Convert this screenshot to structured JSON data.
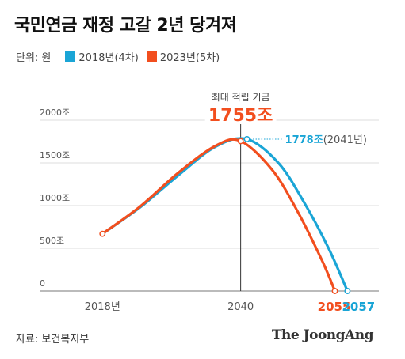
{
  "header": {
    "title": "국민연금 재정 고갈 2년 당겨져"
  },
  "legend": {
    "unit": "단위: 원",
    "items": [
      {
        "label": "2018년(4차)",
        "color": "#1aa5d6"
      },
      {
        "label": "2023년(5차)",
        "color": "#f24e1e"
      }
    ]
  },
  "footer": {
    "source": "자료: 보건복지부",
    "brand": "The JoongAng"
  },
  "chart_data": {
    "type": "line",
    "y_ticks": [
      {
        "value": 0,
        "label": "0"
      },
      {
        "value": 500,
        "label": "500조"
      },
      {
        "value": 1000,
        "label": "1000조"
      },
      {
        "value": 1500,
        "label": "1500조"
      },
      {
        "value": 2000,
        "label": "2000조"
      }
    ],
    "ylim": [
      0,
      2000
    ],
    "xlim": [
      2008,
      2062
    ],
    "x_ticks": [
      {
        "value": 2018,
        "label": "2018년"
      },
      {
        "value": 2040,
        "label": "2040"
      }
    ],
    "series": [
      {
        "name": "2018년(4차)",
        "color": "#1aa5d6",
        "x": [
          2018,
          2024,
          2030,
          2036,
          2041,
          2046,
          2050,
          2054,
          2057
        ],
        "y": [
          670,
          980,
          1350,
          1690,
          1778,
          1500,
          1050,
          500,
          0
        ]
      },
      {
        "name": "2023년(5차)",
        "color": "#f24e1e",
        "x": [
          2018,
          2024,
          2030,
          2036,
          2040,
          2045,
          2049,
          2053,
          2055
        ],
        "y": [
          670,
          990,
          1380,
          1700,
          1755,
          1420,
          940,
          350,
          0
        ]
      }
    ],
    "annotations": {
      "peak_caption": "최대 적립 기금",
      "peak_value": "1755조",
      "blue_peak_value": "1778조",
      "blue_peak_year": "(2041년)",
      "end_red": "2055",
      "end_blue": "2057"
    }
  }
}
